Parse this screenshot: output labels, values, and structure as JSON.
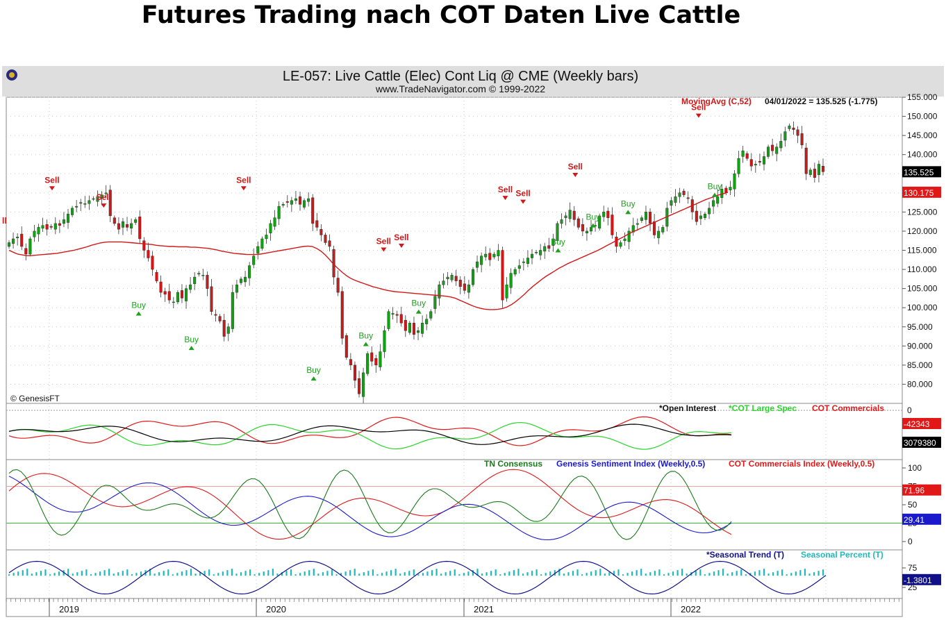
{
  "page_title": "Futures Trading nach COT Daten Live Cattle",
  "chart_header": {
    "title": "LE-057:  Live Cattle (Elec) Cont Liq @ CME  (Weekly bars)",
    "subtitle": "www.TradeNavigator.com © 1999-2022",
    "copyright": "© GenesisFT",
    "moving_avg_label": "MovingAvg (C,52)",
    "moving_avg_info": "04/01/2022 = 135.525 (-1.775)"
  },
  "colors": {
    "up": "#14a014",
    "down": "#d01818",
    "ma": "#d01818",
    "buy": "#1ea01e",
    "sell": "#d01818",
    "open_interest": "#000000",
    "large_spec": "#2ad52a",
    "commercials": "#e01818",
    "consensus": "#1a7a1a",
    "sentiment": "#1a1acc",
    "commercials_index": "#e01818",
    "seasonal_trend": "#10108a",
    "seasonal_percent": "#20b8b8"
  },
  "chart_data": [
    {
      "type": "candlestick",
      "ylim": [
        75,
        155
      ],
      "yticks": [
        "155.000",
        "150.000",
        "145.000",
        "140.000",
        "135.000",
        "130.000",
        "125.000",
        "120.000",
        "115.000",
        "110.000",
        "105.000",
        "100.000",
        "95.000",
        "90.000",
        "85.000",
        "80.000"
      ],
      "ytick_values": [
        155,
        150,
        145,
        140,
        135,
        130,
        125,
        120,
        115,
        110,
        105,
        100,
        95,
        90,
        85,
        80
      ],
      "x_start": "2018-11",
      "x_end": "2022-04",
      "xticks": [
        "2019",
        "2020",
        "2021",
        "2022"
      ],
      "last_close": "135.525",
      "ma_last": "130.175",
      "closes": [
        117,
        118,
        118.5,
        116,
        114,
        118,
        120,
        121,
        121.5,
        120.5,
        121,
        122,
        121.5,
        123,
        124.5,
        126,
        126.5,
        127.5,
        127.2,
        128,
        128.5,
        129,
        129.5,
        130,
        124,
        122,
        120.5,
        122.5,
        121,
        122,
        123,
        118,
        115,
        113,
        110,
        107,
        104,
        103.5,
        102,
        101.5,
        104,
        102.5,
        105,
        106,
        108,
        109,
        108.5,
        105,
        99,
        98,
        96.5,
        92.5,
        95,
        104,
        106,
        107.5,
        108,
        111,
        113.5,
        116,
        118,
        119,
        122,
        123.5,
        126.5,
        127,
        127.5,
        128,
        128.5,
        127,
        128,
        128.5,
        122,
        121,
        119,
        117,
        116,
        108,
        104,
        92,
        87,
        85,
        81,
        77.5,
        83,
        88,
        86,
        85,
        88.5,
        94,
        99,
        98.5,
        98,
        96,
        94,
        96,
        93,
        94,
        96,
        97,
        99,
        103,
        106,
        107,
        108,
        108.5,
        107,
        105.5,
        104.5,
        106,
        110,
        112,
        113.5,
        114,
        112.5,
        114,
        115,
        102,
        106,
        109,
        110,
        111,
        112,
        113,
        114,
        114.5,
        115,
        116,
        115.5,
        118,
        122,
        123,
        124,
        125.5,
        123,
        121,
        120,
        120,
        121,
        121.5,
        124,
        125,
        123.5,
        119,
        116,
        117,
        118,
        120,
        121.5,
        122,
        123.5,
        125,
        122,
        119,
        120,
        121,
        126,
        128,
        129,
        130,
        129.5,
        128.5,
        125,
        122.5,
        124,
        124.5,
        126,
        128,
        129,
        131,
        130,
        131.5,
        135,
        139,
        141,
        139,
        137,
        137.5,
        138,
        139.5,
        142,
        141,
        142,
        143.5,
        146,
        147.5,
        146.5,
        145,
        142.5,
        135,
        136,
        134,
        137.5,
        135.525
      ],
      "ma_values": [
        115,
        114.5,
        114,
        113.8,
        113.6,
        113.6,
        113.7,
        113.8,
        113.9,
        114,
        114.1,
        114.2,
        114.4,
        114.6,
        114.8,
        115,
        115.3,
        115.6,
        115.9,
        116.3,
        116.6,
        116.9,
        117.1,
        117.2,
        117.2,
        117.2,
        117.2,
        117.1,
        117,
        116.9,
        116.8,
        116.7,
        116.6,
        116.5,
        116.3,
        116.2,
        116.1,
        116,
        116,
        115.9,
        115.9,
        115.9,
        115.8,
        115.8,
        115.7,
        115.6,
        115.5,
        115.3,
        115.1,
        114.8,
        114.6,
        114.4,
        114.2,
        114.1,
        114,
        113.9,
        113.9,
        113.9,
        114,
        114.2,
        114.4,
        114.6,
        114.8,
        115,
        115.2,
        115.4,
        115.6,
        115.8,
        116,
        116.1,
        116,
        115.5,
        114.8,
        113.8,
        112.6,
        111.3,
        110.2,
        109.2,
        108.3,
        107.6,
        107.1,
        106.7,
        106.3,
        105.9,
        105.5,
        105.2,
        104.9,
        104.6,
        104.4,
        104.2,
        104.1,
        104,
        103.9,
        103.8,
        103.7,
        103.6,
        103.5,
        103.4,
        103.3,
        103.2,
        103.1,
        103,
        102.8,
        102.5,
        102,
        101.5,
        101,
        100.5,
        100.1,
        99.8,
        99.6,
        99.5,
        99.5,
        99.6,
        99.8,
        100.2,
        100.8,
        101.6,
        102.5,
        103.5,
        104.6,
        105.6,
        106.5,
        107.4,
        108.2,
        108.9,
        109.6,
        110.3,
        110.9,
        111.5,
        112,
        112.5,
        113,
        113.5,
        114,
        114.5,
        115,
        115.6,
        116.2,
        116.8,
        117.4,
        118,
        118.6,
        119.2,
        119.8,
        120.3,
        120.8,
        121.3,
        121.8,
        122.3,
        122.8,
        123.3,
        123.8,
        124.3,
        124.8,
        125.3,
        125.8,
        126.3,
        126.8,
        127.3,
        127.8,
        128.3,
        128.7,
        129.1,
        129.5,
        129.8,
        130.175
      ]
    },
    {
      "type": "line",
      "legend": [
        "*Open Interest",
        "*COT Large Spec",
        "COT Commercials"
      ],
      "ytick_label": "0",
      "last_values": [
        "-42343",
        "3079380"
      ]
    },
    {
      "type": "line",
      "legend": [
        "TN Consensus",
        "Genesis Sentiment Index (Weekly,0.5)",
        "COT Commercials Index (Weekly,0.5)"
      ],
      "yticks": [
        "100",
        "75",
        "50",
        "25",
        "0"
      ],
      "ylim": [
        0,
        100
      ],
      "last_values": [
        "71.96",
        "29.41"
      ]
    },
    {
      "type": "line",
      "legend": [
        "*Seasonal Trend (T)",
        "Seasonal Percent (T)"
      ],
      "yticks": [
        "75",
        "25"
      ],
      "last_values": [
        "-1.3801"
      ]
    }
  ],
  "signals": {
    "sell": [
      {
        "label": "Sell",
        "x": "2019-01",
        "y": 131
      },
      {
        "label": "Sell",
        "x": "2019-04",
        "y": 126.5
      },
      {
        "label": "Sell",
        "x": "2019-12",
        "y": 131
      },
      {
        "label": "Sell",
        "x": "2020-08",
        "y": 115
      },
      {
        "label": "Sell",
        "x": "2020-09",
        "y": 116
      },
      {
        "label": "Sell",
        "x": "2021-03",
        "y": 128.5
      },
      {
        "label": "Sell",
        "x": "2021-04",
        "y": 127.5
      },
      {
        "label": "Sell",
        "x": "2021-07",
        "y": 134.5
      },
      {
        "label": "Sell",
        "x": "2022-02",
        "y": 150
      }
    ],
    "buy": [
      {
        "label": "Buy",
        "x": "2019-06",
        "y": 98.5
      },
      {
        "label": "Buy",
        "x": "2019-09",
        "y": 89.5
      },
      {
        "label": "Buy",
        "x": "2020-04",
        "y": 81.5
      },
      {
        "label": "Buy",
        "x": "2020-07",
        "y": 90.5
      },
      {
        "label": "Buy",
        "x": "2020-10",
        "y": 99
      },
      {
        "label": "Buy",
        "x": "2021-06",
        "y": 115
      },
      {
        "label": "Buy",
        "x": "2021-08",
        "y": 121.5
      },
      {
        "label": "Buy",
        "x": "2021-10",
        "y": 125
      },
      {
        "label": "Buy",
        "x": "2022-03",
        "y": 129.5
      }
    ]
  }
}
